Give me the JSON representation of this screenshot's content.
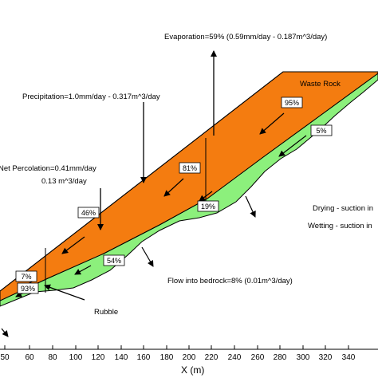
{
  "colors": {
    "waste_rock": "#f47c10",
    "rubble": "#8cf07c",
    "outline": "#000000",
    "background": "#ffffff"
  },
  "labels": {
    "evaporation": "Evaporation=59% (0.59mm/day - 0.187m^3/day)",
    "precipitation": "Precipitation=1.0mm/day - 0.317m^3/day",
    "net_percolation": "Net Percolation=0.41mm/day",
    "net_percolation_volume": "0.13 m^3/day",
    "waste_rock": "Waste Rock",
    "drying": "Drying - suction in",
    "wetting": "Wetting - suction in",
    "flow_bedrock": "Flow into bedrock=8% (0.01m^3/day)",
    "rubble": "Rubble"
  },
  "percent_boxes": [
    "95%",
    "5%",
    "81%",
    "19%",
    "46%",
    "54%",
    "7%",
    "93%"
  ],
  "x_axis": {
    "title": "X (m)",
    "ticks": [
      "50",
      "60",
      "80",
      "100",
      "120",
      "140",
      "160",
      "180",
      "200",
      "220",
      "240",
      "260",
      "280",
      "300",
      "320",
      "340"
    ]
  }
}
